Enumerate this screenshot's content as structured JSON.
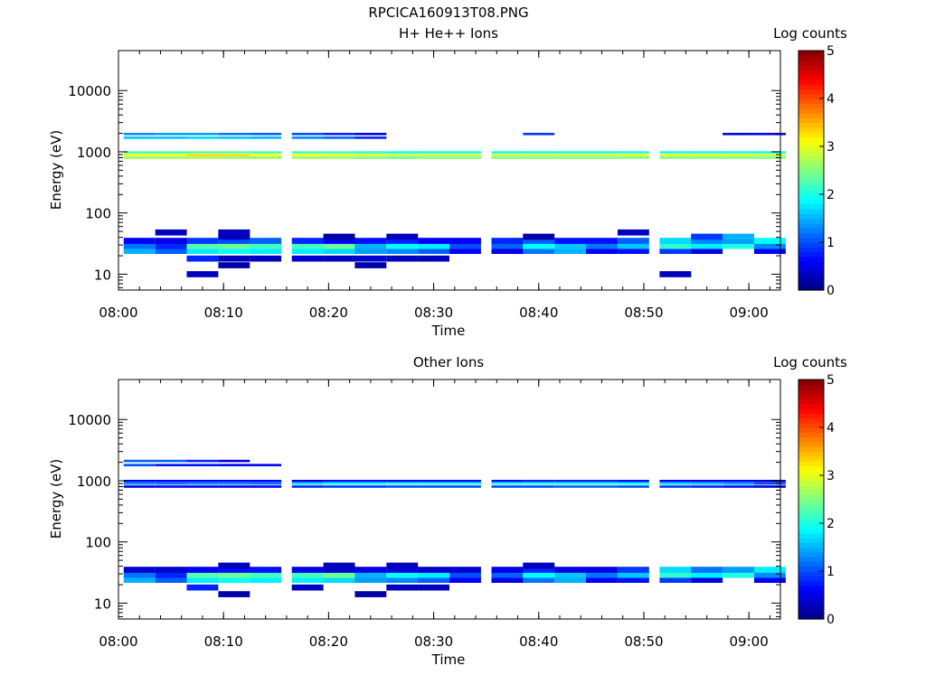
{
  "figure_title": "RPCICA160913T08.PNG",
  "colorbar": {
    "label": "Log counts",
    "ticks": [
      "0",
      "1",
      "2",
      "3",
      "4",
      "5"
    ],
    "range": [
      0,
      5
    ],
    "colormap": "jet"
  },
  "chart_data": [
    {
      "type": "heatmap",
      "title": "H+ He++ Ions",
      "xlabel": "Time",
      "ylabel": "Energy (eV)",
      "y_scale": "log",
      "ylim": [
        5.5,
        45000
      ],
      "xlim": [
        "08:00",
        "09:03"
      ],
      "x_ticks": [
        "08:00",
        "08:10",
        "08:20",
        "08:30",
        "08:40",
        "08:50",
        "09:00"
      ],
      "y_ticks": [
        "10",
        "100",
        "1000",
        "10000"
      ],
      "time_bins": [
        "08:02",
        "08:05",
        "08:08",
        "08:11",
        "08:14",
        "08:18",
        "08:21",
        "08:24",
        "08:27",
        "08:30",
        "08:33",
        "08:37",
        "08:40",
        "08:43",
        "08:46",
        "08:49",
        "08:53",
        "08:56",
        "08:59",
        "09:02"
      ],
      "rows": [
        {
          "energy": 10,
          "values": [
            null,
            null,
            0.3,
            null,
            null,
            null,
            null,
            null,
            null,
            null,
            null,
            null,
            null,
            null,
            null,
            null,
            0.3,
            null,
            null,
            null
          ]
        },
        {
          "energy": 14,
          "values": [
            null,
            null,
            null,
            0.2,
            null,
            null,
            null,
            0.2,
            null,
            null,
            null,
            null,
            null,
            null,
            null,
            null,
            null,
            null,
            null,
            null
          ]
        },
        {
          "energy": 18,
          "values": [
            null,
            null,
            0.8,
            0.3,
            0.3,
            0.4,
            0.3,
            0.4,
            0.3,
            0.3,
            null,
            null,
            null,
            null,
            null,
            null,
            null,
            null,
            null,
            null
          ]
        },
        {
          "energy": 24,
          "values": [
            1.5,
            1.1,
            1.8,
            1.9,
            1.8,
            1.8,
            1.7,
            1.4,
            1.3,
            1.1,
            0.6,
            0.5,
            1.2,
            1.5,
            0.6,
            0.7,
            0.9,
            0.5,
            null,
            0.6
          ]
        },
        {
          "energy": 29,
          "values": [
            1.2,
            0.8,
            2.3,
            2.4,
            2.2,
            2.2,
            2.4,
            1.5,
            1.9,
            1.8,
            1.0,
            1.1,
            1.9,
            1.6,
            1.2,
            1.6,
            2.1,
            1.8,
            2.0,
            1.3
          ]
        },
        {
          "energy": 35,
          "values": [
            0.6,
            0.5,
            0.9,
            1.0,
            1.1,
            0.8,
            0.6,
            0.7,
            0.8,
            0.6,
            0.6,
            0.8,
            1.1,
            0.7,
            0.7,
            1.1,
            1.7,
            1.3,
            1.4,
            1.9
          ]
        },
        {
          "energy": 41,
          "values": [
            null,
            null,
            null,
            0.3,
            null,
            null,
            0.2,
            null,
            0.3,
            null,
            null,
            null,
            0.2,
            null,
            null,
            null,
            null,
            0.9,
            1.5,
            null
          ]
        },
        {
          "energy": 48,
          "values": [
            null,
            0.3,
            null,
            0.3,
            null,
            null,
            null,
            null,
            null,
            null,
            null,
            null,
            null,
            null,
            null,
            0.3,
            null,
            null,
            null,
            null
          ]
        },
        {
          "energy": 800,
          "values": [
            2.6,
            2.6,
            2.7,
            2.6,
            2.6,
            2.6,
            2.6,
            2.5,
            2.4,
            2.5,
            2.5,
            2.5,
            2.5,
            2.5,
            2.5,
            2.5,
            2.5,
            2.5,
            2.5,
            2.5
          ]
        },
        {
          "energy": 880,
          "values": [
            3.1,
            3.1,
            3.3,
            3.3,
            3.1,
            3.1,
            3.0,
            3.0,
            2.9,
            2.9,
            2.9,
            2.9,
            2.9,
            2.9,
            2.9,
            3.0,
            3.0,
            3.0,
            3.0,
            2.9
          ]
        },
        {
          "energy": 980,
          "values": [
            2.2,
            2.2,
            2.3,
            2.3,
            2.2,
            2.2,
            2.2,
            2.1,
            2.0,
            2.0,
            2.0,
            2.0,
            2.0,
            2.0,
            2.0,
            2.0,
            2.0,
            2.0,
            2.0,
            2.0
          ]
        },
        {
          "energy": 1700,
          "values": [
            1.6,
            1.6,
            1.7,
            1.6,
            1.5,
            1.3,
            1.1,
            0.8,
            null,
            null,
            null,
            null,
            null,
            null,
            null,
            null,
            null,
            null,
            null,
            null
          ]
        },
        {
          "energy": 1950,
          "values": [
            1.3,
            1.4,
            1.4,
            1.2,
            1.1,
            1.0,
            0.8,
            0.5,
            null,
            null,
            null,
            null,
            0.9,
            null,
            null,
            null,
            null,
            null,
            0.5,
            0.6
          ]
        }
      ]
    },
    {
      "type": "heatmap",
      "title": "Other Ions",
      "xlabel": "Time",
      "ylabel": "Energy (eV)",
      "y_scale": "log",
      "ylim": [
        5.5,
        45000
      ],
      "xlim": [
        "08:00",
        "09:03"
      ],
      "x_ticks": [
        "08:00",
        "08:10",
        "08:20",
        "08:30",
        "08:40",
        "08:50",
        "09:00"
      ],
      "y_ticks": [
        "10",
        "100",
        "1000",
        "10000"
      ],
      "time_bins": [
        "08:02",
        "08:05",
        "08:08",
        "08:11",
        "08:14",
        "08:18",
        "08:21",
        "08:24",
        "08:27",
        "08:30",
        "08:33",
        "08:37",
        "08:40",
        "08:43",
        "08:46",
        "08:49",
        "08:53",
        "08:56",
        "08:59",
        "09:02"
      ],
      "rows": [
        {
          "energy": 14,
          "values": [
            null,
            null,
            null,
            0.2,
            null,
            null,
            null,
            0.2,
            null,
            null,
            null,
            null,
            null,
            null,
            null,
            null,
            null,
            null,
            null,
            null
          ]
        },
        {
          "energy": 18,
          "values": [
            null,
            null,
            0.8,
            null,
            null,
            0.3,
            null,
            null,
            0.3,
            0.3,
            null,
            null,
            null,
            null,
            null,
            null,
            null,
            null,
            null,
            null
          ]
        },
        {
          "energy": 24,
          "values": [
            1.5,
            1.1,
            1.8,
            1.9,
            1.8,
            1.8,
            1.7,
            1.4,
            1.3,
            1.1,
            0.6,
            0.5,
            1.2,
            1.5,
            0.6,
            0.7,
            0.9,
            0.5,
            null,
            0.6
          ]
        },
        {
          "energy": 29,
          "values": [
            1.2,
            0.8,
            2.3,
            2.4,
            2.2,
            2.2,
            2.4,
            1.5,
            1.9,
            1.8,
            1.0,
            1.1,
            1.9,
            1.6,
            1.2,
            1.6,
            2.1,
            1.8,
            2.0,
            1.3
          ]
        },
        {
          "energy": 35,
          "values": [
            0.4,
            0.4,
            0.6,
            0.7,
            0.7,
            0.5,
            0.4,
            0.5,
            0.5,
            0.4,
            0.4,
            0.5,
            0.8,
            0.5,
            0.5,
            0.9,
            1.7,
            1.2,
            1.4,
            1.8
          ]
        },
        {
          "energy": 41,
          "values": [
            null,
            null,
            null,
            0.3,
            null,
            null,
            0.3,
            null,
            0.3,
            null,
            null,
            null,
            0.3,
            null,
            null,
            null,
            null,
            null,
            null,
            null
          ]
        },
        {
          "energy": 800,
          "values": [
            0.5,
            0.6,
            0.6,
            0.6,
            0.6,
            0.8,
            0.9,
            0.9,
            1.0,
            1.0,
            1.0,
            1.0,
            1.0,
            1.1,
            1.1,
            1.0,
            0.9,
            0.8,
            0.7,
            0.4
          ]
        },
        {
          "energy": 900,
          "values": [
            1.3,
            1.2,
            1.3,
            1.3,
            1.2,
            1.7,
            1.9,
            1.9,
            2.0,
            2.0,
            2.0,
            2.0,
            2.0,
            2.0,
            2.0,
            1.9,
            1.7,
            1.6,
            1.4,
            1.0
          ]
        },
        {
          "energy": 990,
          "values": [
            0.6,
            0.6,
            0.6,
            0.6,
            0.6,
            0.5,
            0.7,
            0.7,
            0.7,
            0.7,
            0.7,
            0.7,
            0.8,
            0.8,
            0.8,
            0.7,
            0.6,
            0.6,
            0.6,
            0.4
          ]
        },
        {
          "energy": 1800,
          "values": [
            1.0,
            0.7,
            0.7,
            0.6,
            0.6,
            null,
            null,
            null,
            null,
            null,
            null,
            null,
            null,
            null,
            null,
            null,
            null,
            null,
            null,
            null
          ]
        },
        {
          "energy": 2100,
          "values": [
            1.1,
            1.1,
            0.8,
            0.4,
            null,
            null,
            null,
            null,
            null,
            null,
            null,
            null,
            null,
            null,
            null,
            null,
            null,
            null,
            null,
            null
          ]
        }
      ]
    }
  ]
}
